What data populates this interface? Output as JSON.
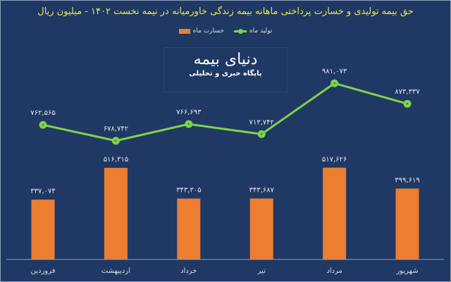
{
  "title": "حق بیمه تولیدی و خسارت پرداختی ماهانه بیمه زندگی خاورمیانه در نیمه نخست ۱۴۰۲ - میلیون ریال",
  "legend": {
    "production": "تولید ماه",
    "loss": "خسارت ماه"
  },
  "watermark": {
    "logo": "دنیای بیمه",
    "subtitle": "پایگاه خبری و تحلیلی"
  },
  "colors": {
    "background": "#1f3864",
    "title": "#e8e84a",
    "line": "#7ed348",
    "bar": "#ed7d31",
    "axis": "#8ea2bf"
  },
  "chart_data": {
    "type": "bar+line",
    "title": "حق بیمه تولیدی و خسارت پرداختی ماهانه بیمه زندگی خاورمیانه در نیمه نخست ۱۴۰۲ - میلیون ریال",
    "xlabel": "",
    "ylabel": "",
    "grid": false,
    "legend_position": "top",
    "categories": [
      "فروردین",
      "اردیبهشت",
      "خرداد",
      "تیر",
      "مرداد",
      "شهریور"
    ],
    "series": [
      {
        "name": "تولید ماه",
        "type": "line",
        "values": [
          762565,
          678742,
          766693,
          713742,
          981073,
          873337
        ],
        "labels": [
          "۷۶۲,۵۶۵",
          "۶۷۸,۷۴۲",
          "۷۶۶,۶۹۳",
          "۷۱۳,۷۴۲",
          "۹۸۱,۰۷۳",
          "۸۷۳,۳۳۷"
        ]
      },
      {
        "name": "خسارت ماه",
        "type": "bar",
        "values": [
          337074,
          516315,
          343305,
          343687,
          517626,
          399619
        ],
        "labels": [
          "۳۳۷,۰۷۴",
          "۵۱۶,۳۱۵",
          "۳۴۳,۳۰۵",
          "۳۴۳,۶۸۷",
          "۵۱۷,۶۲۶",
          "۳۹۹,۶۱۹"
        ]
      }
    ]
  }
}
